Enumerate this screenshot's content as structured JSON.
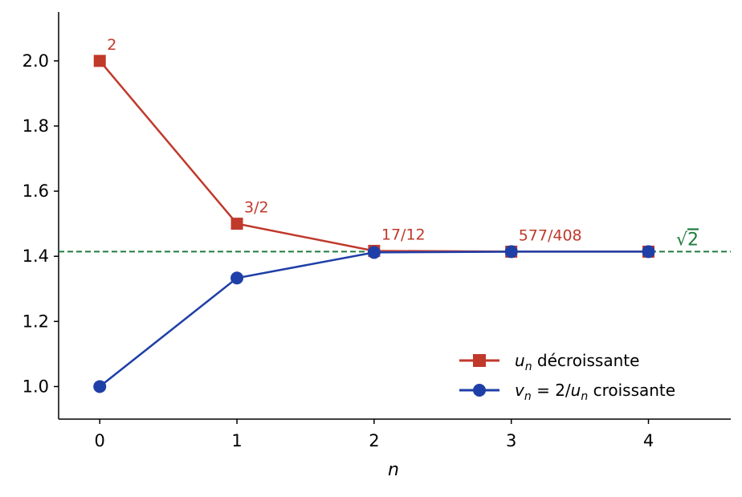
{
  "chart_data": {
    "type": "line",
    "title": "",
    "xlabel": "n",
    "ylabel": "",
    "x": [
      0,
      1,
      2,
      3,
      4
    ],
    "xlim": [
      -0.3,
      4.6
    ],
    "ylim": [
      0.9,
      2.15
    ],
    "x_ticks": [
      "0",
      "1",
      "2",
      "3",
      "4"
    ],
    "y_ticks": [
      "1.0",
      "1.2",
      "1.4",
      "1.6",
      "1.8",
      "2.0"
    ],
    "grid": false,
    "legend_position": "bottom-right",
    "series": [
      {
        "key": "u",
        "values": [
          2.0,
          1.5,
          1.41667,
          1.41422,
          1.41421
        ],
        "color": "#c0392b",
        "marker": "square",
        "legend_var": "u",
        "legend_sub": "n",
        "legend_text": " décroissante",
        "data_labels": [
          "2",
          "3/2",
          "17/12",
          "577/408"
        ]
      },
      {
        "key": "v",
        "values": [
          1.0,
          1.33333,
          1.41176,
          1.41421,
          1.41421
        ],
        "color": "#1f3fa8",
        "marker": "circle",
        "legend_var": "v",
        "legend_sub": "n",
        "legend_eq": " = 2/",
        "legend_var2": "u",
        "legend_sub2": "n",
        "legend_text": " croissante"
      }
    ],
    "reference_line": {
      "y": 1.41421,
      "label": "2",
      "label_prefix": "√",
      "color": "#1e7b3c",
      "style": "dashed"
    }
  }
}
